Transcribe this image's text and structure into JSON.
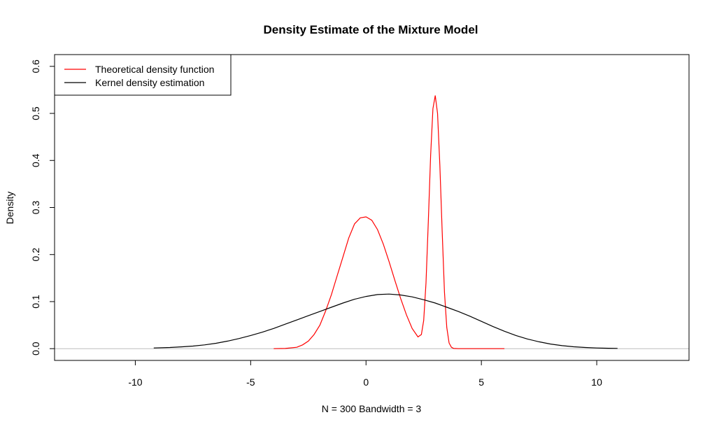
{
  "chart_data": {
    "type": "line",
    "title": "Density Estimate of the Mixture Model",
    "xlabel": "N = 300   Bandwidth = 3",
    "ylabel": "Density",
    "xlim": [
      -13.5,
      14
    ],
    "ylim": [
      -0.025,
      0.625
    ],
    "xticks": [
      -10,
      -5,
      0,
      5,
      10
    ],
    "xtick_labels": [
      "-10",
      "-5",
      "0",
      "5",
      "10"
    ],
    "yticks": [
      0.0,
      0.1,
      0.2,
      0.3,
      0.4,
      0.5,
      0.6
    ],
    "ytick_labels": [
      "0.0",
      "0.1",
      "0.2",
      "0.3",
      "0.4",
      "0.5",
      "0.6"
    ],
    "grid": false,
    "legend_position": "top-left",
    "baseline": {
      "y": 0,
      "color": "#bebebe"
    },
    "series": [
      {
        "name": "Theoretical density function",
        "color": "#ff0000",
        "x": [
          -4,
          -3.5,
          -3,
          -2.75,
          -2.5,
          -2.25,
          -2,
          -1.75,
          -1.5,
          -1.25,
          -1,
          -0.75,
          -0.5,
          -0.25,
          0,
          0.25,
          0.5,
          0.75,
          1,
          1.25,
          1.5,
          1.75,
          2,
          2.25,
          2.4,
          2.5,
          2.6,
          2.7,
          2.8,
          2.9,
          3,
          3.1,
          3.2,
          3.3,
          3.4,
          3.5,
          3.6,
          3.7,
          3.8,
          4,
          4.5,
          5,
          6
        ],
        "y": [
          0.0,
          0.0005,
          0.003,
          0.008,
          0.016,
          0.03,
          0.05,
          0.08,
          0.115,
          0.155,
          0.195,
          0.235,
          0.265,
          0.278,
          0.28,
          0.273,
          0.253,
          0.222,
          0.185,
          0.145,
          0.107,
          0.072,
          0.043,
          0.025,
          0.03,
          0.06,
          0.14,
          0.27,
          0.41,
          0.51,
          0.538,
          0.5,
          0.39,
          0.25,
          0.12,
          0.045,
          0.012,
          0.003,
          0.0005,
          0.0,
          0.0,
          0.0,
          0.0
        ]
      },
      {
        "name": "Kernel density estimation",
        "color": "#000000",
        "x": [
          -9.2,
          -8.5,
          -8,
          -7.5,
          -7,
          -6.5,
          -6,
          -5.5,
          -5,
          -4.5,
          -4,
          -3.5,
          -3,
          -2.5,
          -2,
          -1.5,
          -1,
          -0.5,
          0,
          0.5,
          1,
          1.5,
          2,
          2.5,
          3,
          3.5,
          4,
          4.5,
          5,
          5.5,
          6,
          6.5,
          7,
          7.5,
          8,
          8.5,
          9,
          9.5,
          10,
          10.5,
          10.9
        ],
        "y": [
          0.0015,
          0.0025,
          0.0038,
          0.0055,
          0.008,
          0.0115,
          0.016,
          0.0215,
          0.028,
          0.035,
          0.043,
          0.052,
          0.061,
          0.07,
          0.079,
          0.088,
          0.097,
          0.105,
          0.111,
          0.115,
          0.116,
          0.114,
          0.11,
          0.104,
          0.097,
          0.088,
          0.079,
          0.069,
          0.058,
          0.047,
          0.037,
          0.028,
          0.0205,
          0.0145,
          0.0098,
          0.0064,
          0.004,
          0.0025,
          0.0015,
          0.0009,
          0.0006
        ]
      }
    ]
  }
}
